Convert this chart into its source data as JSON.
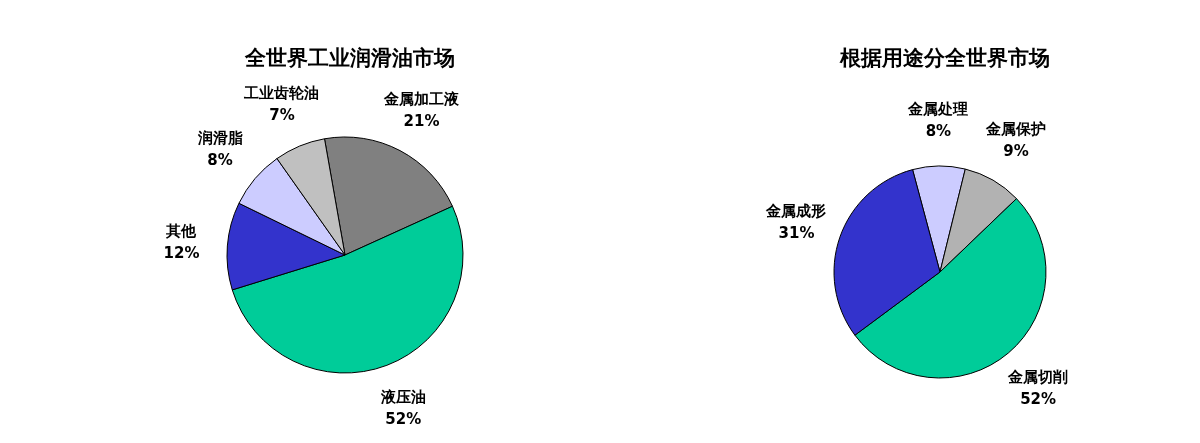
{
  "chart_data": [
    {
      "type": "pie",
      "title": "全世界工业润滑油市场",
      "categories": [
        "金属加工液",
        "液压油",
        "其他",
        "润滑脂",
        "工业齿轮油"
      ],
      "values": [
        21,
        52,
        12,
        8,
        7
      ],
      "value_labels": [
        "21%",
        "52%",
        "12%",
        "8%",
        "7%"
      ],
      "colors": [
        "#808080",
        "#00cc99",
        "#3333cc",
        "#ccccff",
        "#c0c0c0"
      ]
    },
    {
      "type": "pie",
      "title": "根据用途分全世界市场",
      "categories": [
        "金属处理",
        "金属保护",
        "金属切削",
        "金属成形"
      ],
      "values": [
        8,
        9,
        52,
        31
      ],
      "value_labels": [
        "8%",
        "9%",
        "52%",
        "31%"
      ],
      "colors": [
        "#ccccff",
        "#b2b2b2",
        "#00cc99",
        "#3333cc"
      ]
    }
  ]
}
